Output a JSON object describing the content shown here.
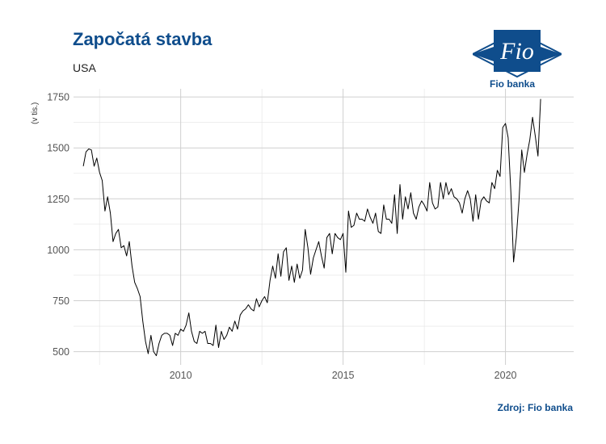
{
  "header": {
    "title": "Započatá stavba",
    "subtitle": "USA"
  },
  "logo": {
    "text": "Fio",
    "caption": "Fio banka",
    "color": "#0f4d8c"
  },
  "footer": {
    "source": "Zdroj: Fio banka"
  },
  "chart_data": {
    "type": "line",
    "title": "Započatá stavba",
    "subtitle": "USA",
    "xlabel": "",
    "ylabel": "(v tis.)",
    "xlim": [
      2006.7,
      2022.1
    ],
    "ylim": [
      435,
      1790
    ],
    "x_ticks": [
      2010,
      2015,
      2020
    ],
    "y_ticks": [
      500,
      750,
      1000,
      1250,
      1500,
      1750
    ],
    "grid": true,
    "legend": "none",
    "line_color": "#000000",
    "series": [
      {
        "start": 2007.0,
        "step": 0.0833333,
        "values": [
          1410,
          1480,
          1495,
          1490,
          1410,
          1450,
          1380,
          1340,
          1190,
          1260,
          1180,
          1040,
          1080,
          1100,
          1010,
          1020,
          970,
          1040,
          920,
          840,
          810,
          770,
          650,
          550,
          490,
          580,
          500,
          480,
          540,
          580,
          590,
          590,
          580,
          530,
          590,
          580,
          610,
          600,
          630,
          690,
          600,
          550,
          540,
          600,
          590,
          600,
          540,
          540,
          530,
          630,
          520,
          600,
          560,
          580,
          620,
          600,
          650,
          610,
          680,
          700,
          710,
          730,
          710,
          700,
          760,
          720,
          750,
          770,
          740,
          850,
          920,
          860,
          980,
          870,
          990,
          1010,
          850,
          920,
          840,
          930,
          860,
          900,
          1100,
          1010,
          880,
          960,
          1000,
          1040,
          970,
          910,
          1060,
          1080,
          980,
          1080,
          1060,
          1050,
          1080,
          890,
          1190,
          1110,
          1120,
          1180,
          1150,
          1150,
          1140,
          1200,
          1160,
          1130,
          1180,
          1090,
          1080,
          1220,
          1150,
          1150,
          1130,
          1270,
          1080,
          1320,
          1150,
          1260,
          1200,
          1280,
          1180,
          1150,
          1210,
          1240,
          1220,
          1190,
          1330,
          1230,
          1200,
          1210,
          1330,
          1250,
          1330,
          1270,
          1300,
          1260,
          1250,
          1230,
          1180,
          1250,
          1290,
          1250,
          1140,
          1270,
          1150,
          1240,
          1260,
          1240,
          1230,
          1330,
          1300,
          1390,
          1360,
          1600,
          1620,
          1550,
          1280,
          940,
          1060,
          1240,
          1490,
          1380,
          1470,
          1540,
          1650,
          1560,
          1460,
          1740
        ]
      }
    ]
  }
}
